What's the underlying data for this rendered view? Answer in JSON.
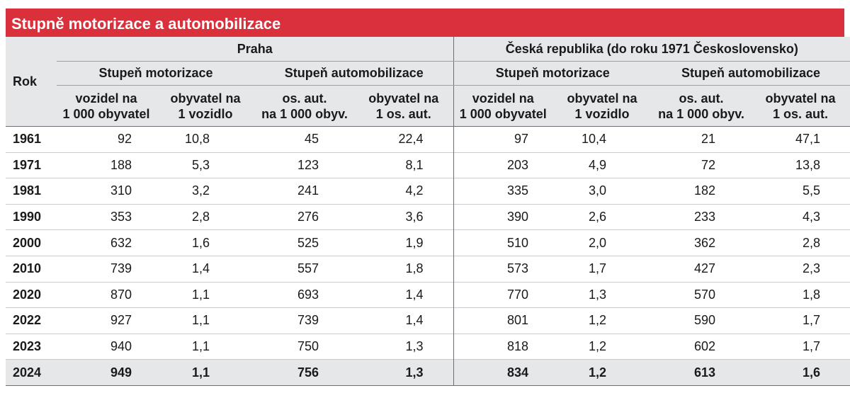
{
  "title": "Stupně motorizace a automobilizace",
  "header": {
    "rok": "Rok",
    "regions": [
      "Praha",
      "Česká republika (do roku 1971 Československo)"
    ],
    "groups": [
      "Stupeň motorizace",
      "Stupeň automobilizace",
      "Stupeň motorizace",
      "Stupeň automobilizace"
    ],
    "columns": [
      [
        "vozidel na",
        "1 000 obyvatel"
      ],
      [
        "obyvatel na",
        "1 vozidlo"
      ],
      [
        "os. aut.",
        "na 1 000 obyv."
      ],
      [
        "obyvatel na",
        "1 os. aut."
      ],
      [
        "vozidel na",
        "1 000 obyvatel"
      ],
      [
        "obyvatel na",
        "1 vozidlo"
      ],
      [
        "os. aut.",
        "na 1 000 obyv."
      ],
      [
        "obyvatel na",
        "1 os. aut."
      ]
    ]
  },
  "rows": [
    [
      "1961",
      "92",
      "10,8",
      "45",
      "22,4",
      "97",
      "10,4",
      "21",
      "47,1"
    ],
    [
      "1971",
      "188",
      "5,3",
      "123",
      "8,1",
      "203",
      "4,9",
      "72",
      "13,8"
    ],
    [
      "1981",
      "310",
      "3,2",
      "241",
      "4,2",
      "335",
      "3,0",
      "182",
      "5,5"
    ],
    [
      "1990",
      "353",
      "2,8",
      "276",
      "3,6",
      "390",
      "2,6",
      "233",
      "4,3"
    ],
    [
      "2000",
      "632",
      "1,6",
      "525",
      "1,9",
      "510",
      "2,0",
      "362",
      "2,8"
    ],
    [
      "2010",
      "739",
      "1,4",
      "557",
      "1,8",
      "573",
      "1,7",
      "427",
      "2,3"
    ],
    [
      "2020",
      "870",
      "1,1",
      "693",
      "1,4",
      "770",
      "1,3",
      "570",
      "1,8"
    ],
    [
      "2022",
      "927",
      "1,1",
      "739",
      "1,4",
      "801",
      "1,2",
      "590",
      "1,7"
    ],
    [
      "2023",
      "940",
      "1,1",
      "750",
      "1,3",
      "818",
      "1,2",
      "602",
      "1,7"
    ],
    [
      "2024",
      "949",
      "1,1",
      "756",
      "1,3",
      "834",
      "1,2",
      "613",
      "1,6"
    ]
  ],
  "colors": {
    "title_bg": "#d9303b",
    "header_bg": "#e6e7e9"
  }
}
